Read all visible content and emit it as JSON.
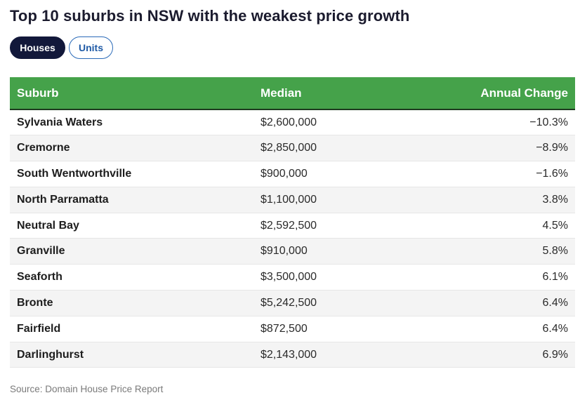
{
  "title": "Top 10 suburbs in NSW with the weakest price growth",
  "tabs": [
    {
      "label": "Houses",
      "active": true
    },
    {
      "label": "Units",
      "active": false
    }
  ],
  "colors": {
    "header_bg": "#45a24a",
    "active_tab_bg": "#12183a",
    "inactive_tab_border": "#2a6ab8"
  },
  "chart_data": {
    "type": "table",
    "columns": [
      "Suburb",
      "Median",
      "Annual Change"
    ],
    "rows": [
      [
        "Sylvania Waters",
        "$2,600,000",
        "−10.3%"
      ],
      [
        "Cremorne",
        "$2,850,000",
        "−8.9%"
      ],
      [
        "South Wentworthville",
        "$900,000",
        "−1.6%"
      ],
      [
        "North Parramatta",
        "$1,100,000",
        "3.8%"
      ],
      [
        "Neutral Bay",
        "$2,592,500",
        "4.5%"
      ],
      [
        "Granville",
        "$910,000",
        "5.8%"
      ],
      [
        "Seaforth",
        "$3,500,000",
        "6.1%"
      ],
      [
        "Bronte",
        "$5,242,500",
        "6.4%"
      ],
      [
        "Fairfield",
        "$872,500",
        "6.4%"
      ],
      [
        "Darlinghurst",
        "$2,143,000",
        "6.9%"
      ]
    ]
  },
  "source": "Source: Domain House Price Report"
}
